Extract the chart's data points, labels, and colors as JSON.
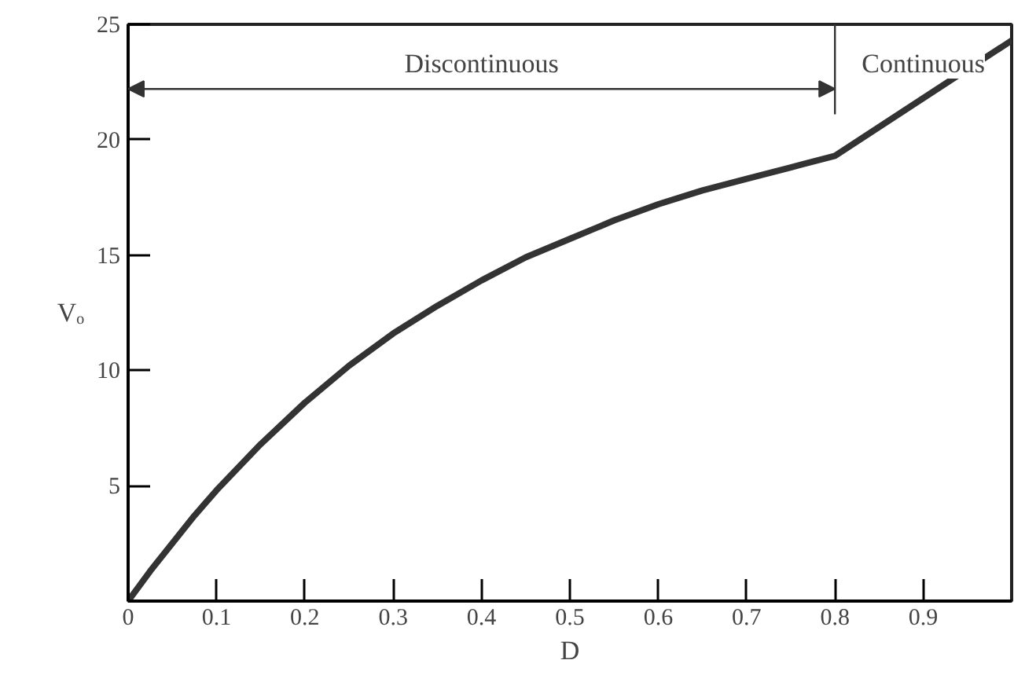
{
  "chart_data": {
    "type": "line",
    "xlabel": "D",
    "ylabel": "Vₒ",
    "x": [
      0,
      0.025,
      0.05,
      0.075,
      0.1,
      0.15,
      0.2,
      0.25,
      0.3,
      0.35,
      0.4,
      0.45,
      0.5,
      0.55,
      0.6,
      0.65,
      0.7,
      0.75,
      0.8,
      0.9,
      1.0
    ],
    "series": [
      {
        "color": "#333333",
        "values": [
          0,
          1.3,
          2.5,
          3.7,
          4.8,
          6.8,
          8.6,
          10.2,
          11.6,
          12.8,
          13.9,
          14.9,
          15.7,
          16.5,
          17.2,
          17.8,
          18.3,
          18.8,
          19.3,
          21.8,
          24.3
        ]
      }
    ],
    "xlim": [
      0,
      1
    ],
    "ylim": [
      0,
      25
    ],
    "xticks": [
      0,
      0.1,
      0.2,
      0.3,
      0.4,
      0.5,
      0.6,
      0.7,
      0.8,
      0.9
    ],
    "yticks": [
      5,
      10,
      15,
      20,
      25
    ],
    "grid": false,
    "marker": "none",
    "line_style": "solid",
    "ref_lines": [
      {
        "axis": "x",
        "value": 0.8
      }
    ],
    "annotations": [
      "Discontinuous",
      "Continuous"
    ]
  }
}
